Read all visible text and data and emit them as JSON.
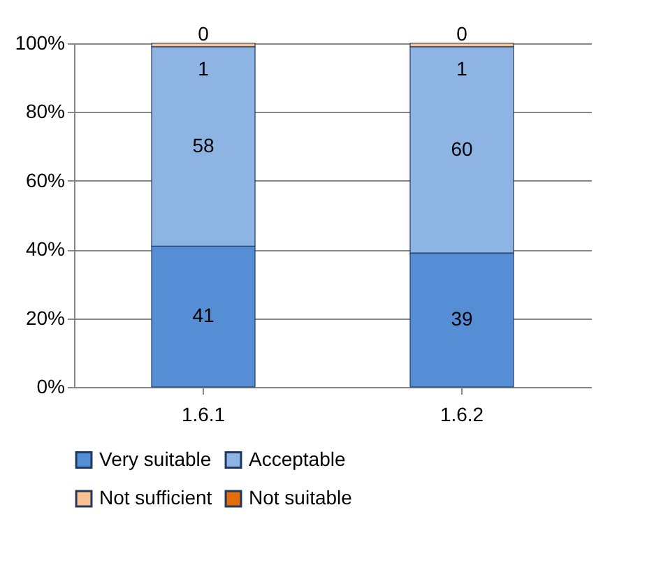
{
  "chart_data": {
    "type": "bar",
    "stacked": true,
    "categories": [
      "1.6.1",
      "1.6.2"
    ],
    "series": [
      {
        "name": "Very suitable",
        "color": "#558ed5",
        "values": [
          41,
          39
        ]
      },
      {
        "name": "Acceptable",
        "color": "#8eb4e3",
        "values": [
          58,
          60
        ]
      },
      {
        "name": "Not sufficient",
        "color": "#fac090",
        "values": [
          1,
          1
        ]
      },
      {
        "name": "Not suitable",
        "color": "#e46c0a",
        "values": [
          0,
          0
        ]
      }
    ],
    "ylim": [
      0,
      100
    ],
    "yticks": [
      {
        "value": 0,
        "label": "0%"
      },
      {
        "value": 20,
        "label": "20%"
      },
      {
        "value": 40,
        "label": "40%"
      },
      {
        "value": 60,
        "label": "60%"
      },
      {
        "value": 80,
        "label": "80%"
      },
      {
        "value": 100,
        "label": "100%"
      }
    ],
    "grid": "y",
    "legend": "bottom",
    "data_labels": true
  }
}
